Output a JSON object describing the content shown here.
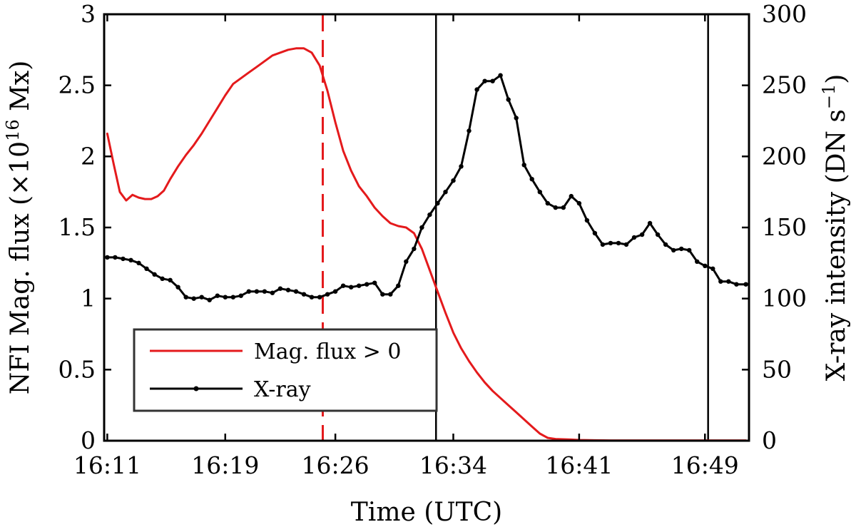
{
  "chart_data": {
    "type": "line",
    "x_unit": "minutes after 16:11 UTC",
    "xlim": [
      -0.2,
      40.8
    ],
    "xlabel": "Time (UTC)",
    "x_ticks": [
      {
        "value": 0,
        "label": "16:11"
      },
      {
        "value": 7.5,
        "label": "16:19"
      },
      {
        "value": 14.5,
        "label": "16:26"
      },
      {
        "value": 22,
        "label": "16:34"
      },
      {
        "value": 30,
        "label": "16:41"
      },
      {
        "value": 38,
        "label": "16:49"
      }
    ],
    "y_left": {
      "label": "NFI Mag. flux (×10",
      "label_exp": "16",
      "label_unit": " Mx)",
      "ylim": [
        0,
        3
      ],
      "ticks": [
        {
          "value": 0,
          "label": "0"
        },
        {
          "value": 0.5,
          "label": "0.5"
        },
        {
          "value": 1,
          "label": "1"
        },
        {
          "value": 1.5,
          "label": "1.5"
        },
        {
          "value": 2,
          "label": "2"
        },
        {
          "value": 2.5,
          "label": "2.5"
        },
        {
          "value": 3,
          "label": "3"
        }
      ]
    },
    "y_right": {
      "label": "X-ray intensity (DN s",
      "label_exp": "−1",
      "label_unit": ")",
      "ylim": [
        0,
        300
      ],
      "ticks": [
        {
          "value": 0,
          "label": "0"
        },
        {
          "value": 50,
          "label": "50"
        },
        {
          "value": 100,
          "label": "100"
        },
        {
          "value": 150,
          "label": "150"
        },
        {
          "value": 200,
          "label": "200"
        },
        {
          "value": 250,
          "label": "250"
        },
        {
          "value": 300,
          "label": "300"
        }
      ]
    },
    "vertical_lines": [
      {
        "x": 13.7,
        "color": "#e41a1c",
        "style": "dashed"
      },
      {
        "x": 20.9,
        "color": "#000000",
        "style": "solid"
      },
      {
        "x": 38.2,
        "color": "#000000",
        "style": "solid"
      }
    ],
    "series": [
      {
        "name": "Mag. flux > 0",
        "axis": "left",
        "color": "#e41a1c",
        "marker": "none",
        "x": [
          0,
          0.4,
          0.8,
          1.2,
          1.6,
          2.0,
          2.4,
          2.8,
          3.2,
          3.6,
          4.0,
          4.5,
          5.0,
          5.5,
          6.0,
          6.5,
          7.0,
          7.5,
          8.0,
          8.5,
          9.0,
          9.5,
          10.0,
          10.5,
          11.0,
          11.5,
          12.0,
          12.5,
          13.0,
          13.5,
          14.0,
          14.5,
          15.0,
          15.5,
          16.0,
          16.5,
          17.0,
          17.5,
          18.0,
          18.5,
          19.0,
          19.5,
          20.0,
          20.5,
          21.0,
          21.5,
          22.0,
          22.5,
          23.0,
          23.5,
          24.0,
          24.5,
          25.0,
          25.5,
          26.0,
          26.5,
          27.0,
          27.5,
          28.0,
          28.5,
          29.0,
          29.5,
          30.0,
          31.0,
          32.0,
          33.0,
          34.0,
          35.0,
          36.0,
          37.0,
          38.0,
          39.0,
          40.0,
          40.6
        ],
        "values": [
          2.16,
          1.95,
          1.75,
          1.69,
          1.73,
          1.71,
          1.7,
          1.7,
          1.72,
          1.76,
          1.84,
          1.93,
          2.01,
          2.08,
          2.16,
          2.25,
          2.34,
          2.43,
          2.51,
          2.55,
          2.59,
          2.63,
          2.67,
          2.71,
          2.73,
          2.75,
          2.76,
          2.76,
          2.73,
          2.64,
          2.46,
          2.24,
          2.04,
          1.9,
          1.79,
          1.72,
          1.64,
          1.58,
          1.53,
          1.51,
          1.5,
          1.46,
          1.35,
          1.2,
          1.05,
          0.9,
          0.76,
          0.65,
          0.56,
          0.48,
          0.41,
          0.35,
          0.3,
          0.25,
          0.2,
          0.15,
          0.1,
          0.05,
          0.02,
          0.012,
          0.01,
          0.008,
          0.005,
          0.003,
          0.002,
          0.002,
          0.002,
          0.002,
          0.002,
          0.002,
          0.002,
          0.002,
          0.002,
          0.002
        ]
      },
      {
        "name": "X-ray",
        "axis": "right",
        "color": "#000000",
        "marker": "dot",
        "x": [
          0,
          0.5,
          1.0,
          1.5,
          2.0,
          2.5,
          3.0,
          3.5,
          4.0,
          4.5,
          5.0,
          5.5,
          6.0,
          6.5,
          7.0,
          7.5,
          8.0,
          8.5,
          9.0,
          9.5,
          10.0,
          10.5,
          11.0,
          11.5,
          12.0,
          12.5,
          13.0,
          13.5,
          14.0,
          14.5,
          15.0,
          15.5,
          16.0,
          16.5,
          17.0,
          17.5,
          18.0,
          18.5,
          19.0,
          19.5,
          20.0,
          20.5,
          21.0,
          21.5,
          22.0,
          22.5,
          23.0,
          23.5,
          24.0,
          24.5,
          25.0,
          25.5,
          26.0,
          26.5,
          27.0,
          27.5,
          28.0,
          28.5,
          29.0,
          29.5,
          30.0,
          30.5,
          31.0,
          31.5,
          32.0,
          32.5,
          33.0,
          33.5,
          34.0,
          34.5,
          35.0,
          35.5,
          36.0,
          36.5,
          37.0,
          37.5,
          38.0,
          38.5,
          39.0,
          39.5,
          40.0,
          40.6
        ],
        "values": [
          129,
          129,
          128,
          127,
          125,
          121,
          117,
          114,
          113,
          108,
          101,
          100,
          101,
          99,
          102,
          101,
          101,
          102,
          105,
          105,
          105,
          104,
          107,
          106,
          105,
          103,
          101,
          101,
          103,
          105,
          109,
          108,
          109,
          110,
          111,
          103,
          103,
          109,
          126,
          135,
          150,
          159,
          167,
          175,
          183,
          193,
          218,
          247,
          253,
          253,
          257,
          240,
          227,
          194,
          184,
          175,
          167,
          164,
          164,
          172,
          167,
          155,
          146,
          138,
          139,
          139,
          138,
          143,
          145,
          153,
          145,
          138,
          134,
          135,
          134,
          126,
          123,
          121,
          112,
          112,
          110,
          110
        ]
      }
    ]
  }
}
